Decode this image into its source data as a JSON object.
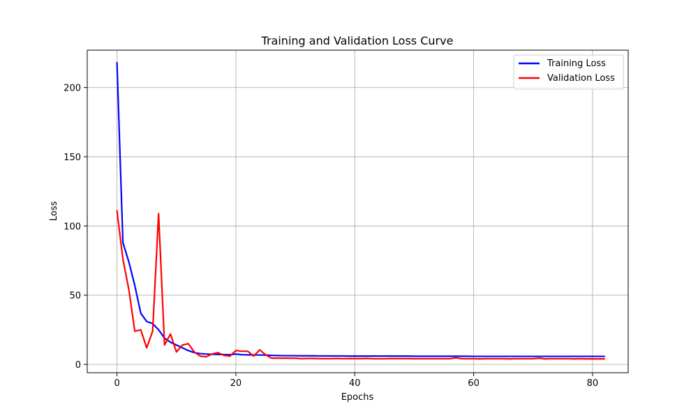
{
  "chart_data": {
    "type": "line",
    "title": "Training and Validation Loss Curve",
    "xlabel": "Epochs",
    "ylabel": "Loss",
    "xlim": [
      -5,
      86
    ],
    "ylim": [
      -6,
      227
    ],
    "xticks": [
      0,
      20,
      40,
      60,
      80
    ],
    "yticks": [
      0,
      50,
      100,
      150,
      200
    ],
    "grid": true,
    "legend_position": "top-right",
    "x": [
      0,
      1,
      2,
      3,
      4,
      5,
      6,
      7,
      8,
      9,
      10,
      11,
      12,
      13,
      14,
      15,
      16,
      17,
      18,
      19,
      20,
      21,
      22,
      23,
      24,
      25,
      26,
      27,
      28,
      29,
      30,
      31,
      32,
      33,
      34,
      35,
      36,
      37,
      38,
      39,
      40,
      41,
      42,
      43,
      44,
      45,
      46,
      47,
      48,
      49,
      50,
      51,
      52,
      53,
      54,
      55,
      56,
      57,
      58,
      59,
      60,
      61,
      62,
      63,
      64,
      65,
      66,
      67,
      68,
      69,
      70,
      71,
      72,
      73,
      74,
      75,
      76,
      77,
      78,
      79,
      80,
      81,
      82
    ],
    "series": [
      {
        "name": "Training Loss",
        "color": "#0000ff",
        "values": [
          218,
          88,
          74,
          57,
          37,
          31,
          29.5,
          25,
          19,
          16,
          14,
          12,
          10,
          8.5,
          7.8,
          7.5,
          7.3,
          7.2,
          7.1,
          7.0,
          7.5,
          7.0,
          6.9,
          6.8,
          6.8,
          6.7,
          6.5,
          6.4,
          6.3,
          6.3,
          6.3,
          6.2,
          6.2,
          6.2,
          6.1,
          6.1,
          6.1,
          6.1,
          6.1,
          6.0,
          6.0,
          6.0,
          6.0,
          6.0,
          6.0,
          6.0,
          6.0,
          6.0,
          6.0,
          6.0,
          5.9,
          5.9,
          5.9,
          5.9,
          5.9,
          5.9,
          5.9,
          5.9,
          5.9,
          5.9,
          5.8,
          5.8,
          5.8,
          5.8,
          5.8,
          5.8,
          5.8,
          5.8,
          5.8,
          5.8,
          5.8,
          5.8,
          5.8,
          5.8,
          5.8,
          5.8,
          5.8,
          5.8,
          5.8,
          5.8,
          5.8,
          5.8,
          5.8
        ]
      },
      {
        "name": "Validation Loss",
        "color": "#ff0000",
        "values": [
          111,
          76,
          54,
          24,
          25,
          12,
          24,
          109,
          14,
          22,
          9,
          14,
          15,
          9,
          6,
          5.5,
          7.5,
          8.5,
          6.5,
          6,
          10,
          9.5,
          9.5,
          6,
          10.5,
          7,
          4.5,
          4.5,
          4.5,
          4.5,
          4.5,
          4.2,
          4.3,
          4.3,
          4.2,
          4.2,
          4.2,
          4.3,
          4.2,
          4.2,
          4.2,
          4.2,
          4.3,
          4.1,
          4.1,
          4.1,
          4.2,
          4.2,
          4.2,
          4.2,
          4.1,
          4.1,
          4.1,
          4.1,
          4.1,
          4.1,
          4.1,
          4.8,
          4.1,
          4.1,
          4.1,
          4.0,
          4.1,
          4.1,
          4.1,
          4.1,
          4.0,
          4.1,
          4.1,
          4.1,
          4.1,
          4.5,
          4.0,
          4.1,
          4.1,
          4.1,
          4.1,
          4.0,
          4.1,
          4.0,
          4.0,
          4.0,
          4.0
        ]
      }
    ]
  }
}
